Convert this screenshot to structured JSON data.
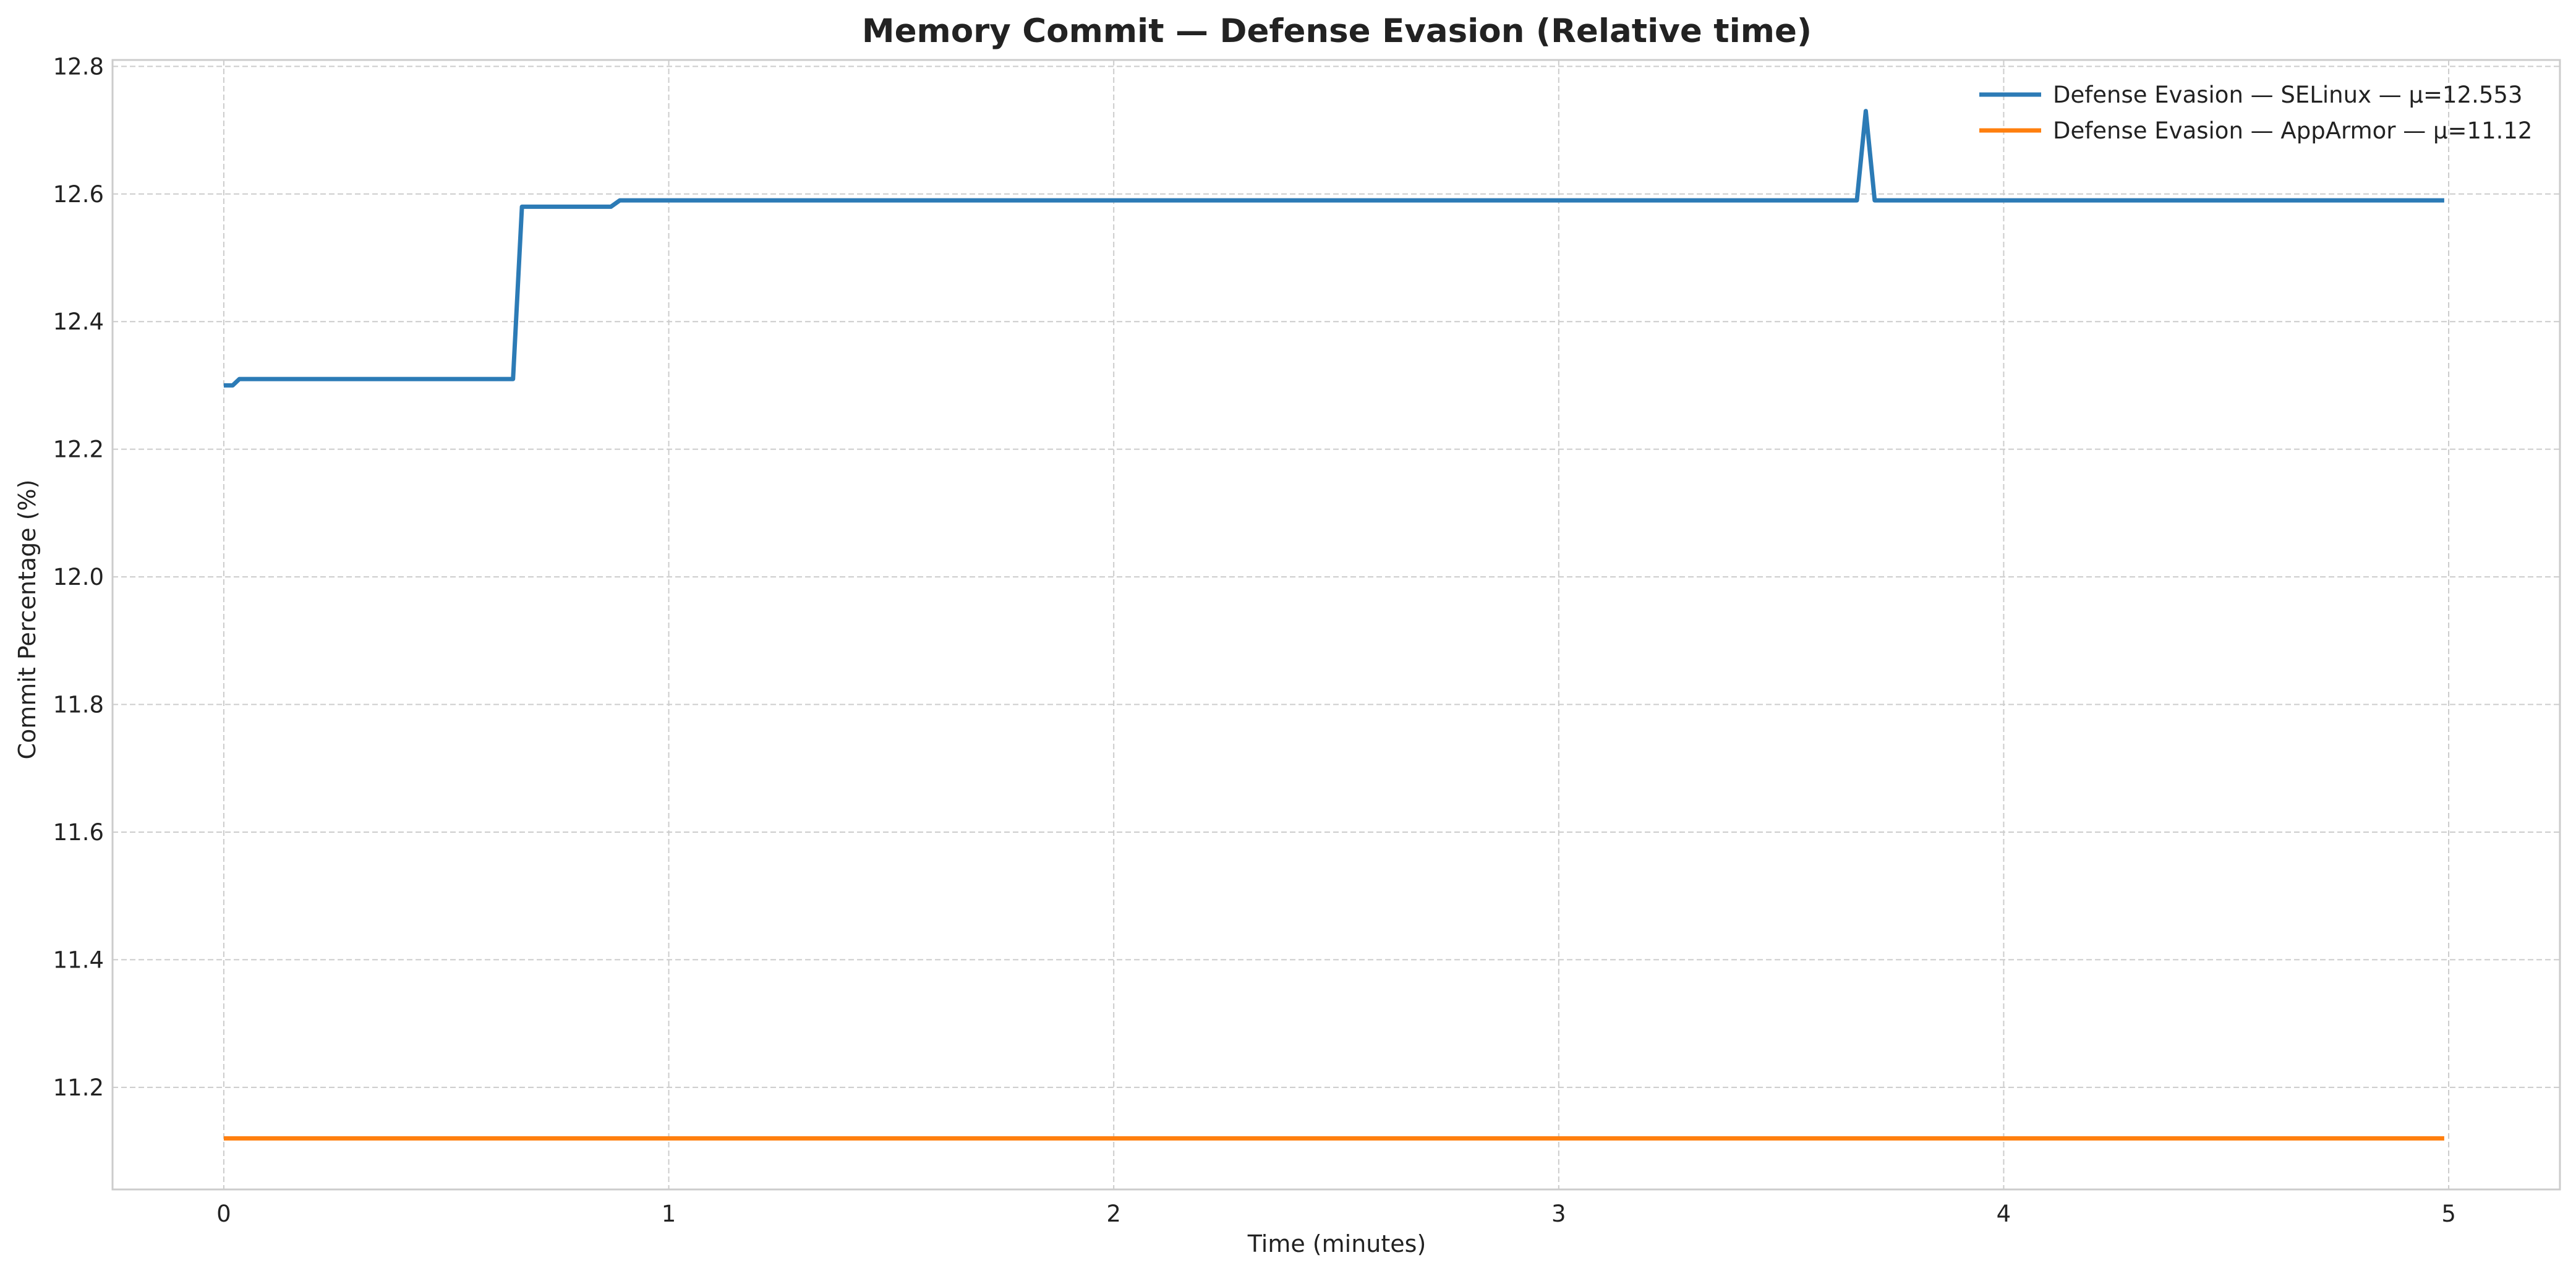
{
  "chart_data": {
    "type": "line",
    "title": "Memory Commit — Defense Evasion (Relative time)",
    "xlabel": "Time (minutes)",
    "ylabel": "Commit Percentage (%)",
    "xlim": [
      -0.25,
      5.25
    ],
    "ylim": [
      11.04,
      12.81
    ],
    "x_ticks": [
      0,
      1,
      2,
      3,
      4,
      5
    ],
    "x_tick_labels": [
      "0",
      "1",
      "2",
      "3",
      "4",
      "5"
    ],
    "y_ticks": [
      11.2,
      11.4,
      11.6,
      11.8,
      12.0,
      12.2,
      12.4,
      12.6,
      12.8
    ],
    "y_tick_labels": [
      "11.2",
      "11.4",
      "11.6",
      "11.8",
      "12.0",
      "12.2",
      "12.4",
      "12.6",
      "12.8"
    ],
    "grid": true,
    "legend_position": "top-right",
    "series": [
      {
        "name": "Defense Evasion — SELinux — μ=12.553",
        "color": "#2c7bb6",
        "x": [
          0,
          0.02,
          0.035,
          0.65,
          0.67,
          0.87,
          0.89,
          3.67,
          3.69,
          3.71,
          4.99
        ],
        "y": [
          12.3,
          12.3,
          12.31,
          12.31,
          12.58,
          12.58,
          12.59,
          12.59,
          12.73,
          12.59,
          12.59
        ]
      },
      {
        "name": "Defense Evasion — AppArmor — μ=11.12",
        "color": "#ff7f0e",
        "x": [
          0,
          4.99
        ],
        "y": [
          11.12,
          11.12
        ]
      }
    ]
  }
}
